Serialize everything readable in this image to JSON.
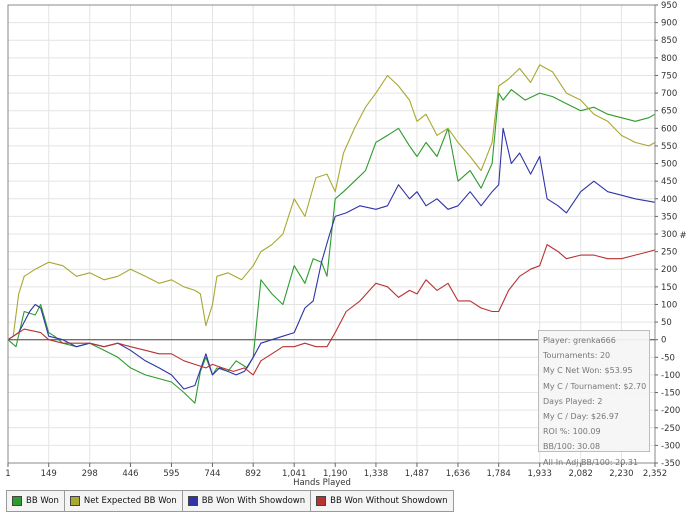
{
  "chart_data": {
    "type": "line",
    "xlabel": "Hands Played",
    "ylabel": "#",
    "xlim": [
      1,
      2352
    ],
    "ylim": [
      -350,
      950
    ],
    "x_ticks": [
      "1",
      "149",
      "298",
      "446",
      "595",
      "744",
      "892",
      "1,041",
      "1,190",
      "1,338",
      "1,487",
      "1,636",
      "1,784",
      "1,933",
      "2,082",
      "2,230",
      "2,352"
    ],
    "x_tick_values": [
      1,
      149,
      298,
      446,
      595,
      744,
      892,
      1041,
      1190,
      1338,
      1487,
      1636,
      1784,
      1933,
      2082,
      2230,
      2352
    ],
    "y_ticks": [
      -350,
      -300,
      -250,
      -200,
      -150,
      -100,
      -50,
      0,
      50,
      100,
      150,
      200,
      250,
      300,
      350,
      400,
      450,
      500,
      550,
      600,
      650,
      700,
      750,
      800,
      850,
      900,
      950
    ],
    "series": [
      {
        "name": "BB Won",
        "color": "#2e9b2e",
        "x": [
          1,
          30,
          60,
          100,
          120,
          149,
          170,
          200,
          250,
          298,
          350,
          400,
          446,
          500,
          595,
          640,
          680,
          700,
          720,
          744,
          760,
          800,
          830,
          870,
          892,
          920,
          960,
          1000,
          1041,
          1080,
          1110,
          1140,
          1160,
          1190,
          1220,
          1260,
          1300,
          1338,
          1380,
          1420,
          1460,
          1487,
          1520,
          1560,
          1600,
          1636,
          1680,
          1720,
          1760,
          1784,
          1800,
          1830,
          1880,
          1933,
          1980,
          2030,
          2082,
          2130,
          2180,
          2230,
          2280,
          2330,
          2352
        ],
        "y": [
          0,
          -20,
          80,
          70,
          100,
          20,
          10,
          -10,
          -20,
          -10,
          -30,
          -50,
          -80,
          -100,
          -120,
          -150,
          -180,
          -90,
          -50,
          -100,
          -80,
          -90,
          -60,
          -80,
          -50,
          170,
          130,
          100,
          210,
          160,
          230,
          220,
          180,
          400,
          420,
          450,
          480,
          560,
          580,
          600,
          550,
          520,
          560,
          520,
          600,
          450,
          480,
          430,
          500,
          700,
          680,
          710,
          680,
          700,
          690,
          670,
          650,
          660,
          640,
          630,
          620,
          630,
          640
        ]
      },
      {
        "name": "Net Expected BB Won",
        "color": "#a8a832",
        "x": [
          1,
          20,
          40,
          60,
          80,
          100,
          149,
          200,
          250,
          298,
          350,
          400,
          446,
          500,
          550,
          595,
          640,
          680,
          700,
          720,
          744,
          760,
          800,
          850,
          892,
          920,
          960,
          1000,
          1041,
          1080,
          1120,
          1160,
          1190,
          1220,
          1260,
          1300,
          1338,
          1380,
          1420,
          1460,
          1487,
          1520,
          1560,
          1600,
          1636,
          1680,
          1720,
          1760,
          1784,
          1820,
          1860,
          1900,
          1933,
          1980,
          2030,
          2082,
          2130,
          2180,
          2230,
          2280,
          2330,
          2352
        ],
        "y": [
          0,
          10,
          130,
          180,
          190,
          200,
          220,
          210,
          180,
          190,
          170,
          180,
          200,
          180,
          160,
          170,
          150,
          140,
          130,
          40,
          100,
          180,
          190,
          170,
          210,
          250,
          270,
          300,
          400,
          350,
          460,
          470,
          420,
          530,
          600,
          660,
          700,
          750,
          720,
          680,
          620,
          640,
          580,
          600,
          560,
          520,
          480,
          560,
          720,
          740,
          770,
          730,
          780,
          760,
          700,
          680,
          640,
          620,
          580,
          560,
          550,
          560
        ]
      },
      {
        "name": "BB Won With Showdown",
        "color": "#2f34a8",
        "x": [
          1,
          40,
          80,
          100,
          120,
          149,
          200,
          250,
          298,
          350,
          400,
          446,
          500,
          550,
          595,
          640,
          680,
          720,
          744,
          770,
          800,
          830,
          860,
          892,
          920,
          960,
          1000,
          1041,
          1080,
          1110,
          1140,
          1170,
          1190,
          1230,
          1280,
          1338,
          1380,
          1420,
          1460,
          1487,
          1520,
          1560,
          1600,
          1636,
          1680,
          1720,
          1760,
          1784,
          1800,
          1830,
          1860,
          1900,
          1933,
          1960,
          2000,
          2030,
          2082,
          2130,
          2180,
          2230,
          2280,
          2352
        ],
        "y": [
          0,
          20,
          80,
          100,
          90,
          10,
          0,
          -20,
          -10,
          -20,
          -10,
          -30,
          -60,
          -80,
          -100,
          -140,
          -130,
          -40,
          -100,
          -80,
          -90,
          -100,
          -90,
          -50,
          -10,
          0,
          10,
          20,
          90,
          110,
          220,
          300,
          350,
          360,
          380,
          370,
          380,
          440,
          400,
          420,
          380,
          400,
          370,
          380,
          420,
          380,
          420,
          440,
          600,
          500,
          530,
          470,
          520,
          400,
          380,
          360,
          420,
          450,
          420,
          410,
          400,
          390
        ]
      },
      {
        "name": "BB Won Without Showdown",
        "color": "#b83232",
        "x": [
          1,
          60,
          120,
          149,
          200,
          250,
          298,
          350,
          400,
          446,
          500,
          550,
          595,
          640,
          680,
          720,
          744,
          780,
          820,
          860,
          892,
          920,
          960,
          1000,
          1041,
          1080,
          1120,
          1160,
          1190,
          1230,
          1280,
          1338,
          1380,
          1420,
          1460,
          1487,
          1520,
          1560,
          1600,
          1636,
          1680,
          1720,
          1760,
          1784,
          1820,
          1860,
          1900,
          1933,
          1960,
          2000,
          2030,
          2082,
          2130,
          2180,
          2230,
          2280,
          2330,
          2352
        ],
        "y": [
          0,
          30,
          20,
          0,
          -10,
          -10,
          -10,
          -20,
          -10,
          -20,
          -30,
          -40,
          -40,
          -60,
          -70,
          -80,
          -70,
          -80,
          -90,
          -80,
          -100,
          -60,
          -40,
          -20,
          -20,
          -10,
          -20,
          -20,
          20,
          80,
          110,
          160,
          150,
          120,
          140,
          130,
          170,
          140,
          160,
          110,
          110,
          90,
          80,
          80,
          140,
          180,
          200,
          210,
          270,
          250,
          230,
          240,
          240,
          230,
          230,
          240,
          250,
          255
        ]
      }
    ]
  },
  "stats": {
    "player": "Player: grenka666",
    "tournaments": "Tournaments: 20",
    "net_won": "My C Net Won: $53.95",
    "per_tournament": "My C / Tournament: $2.70",
    "days_played": "Days Played: 2",
    "per_day": "My C / Day: $26.97",
    "roi": "ROI %: 100.09",
    "bb100": "BB/100: 30.08",
    "allin_bb100": "All-In Adj BB/100: 20.31"
  },
  "legend": [
    {
      "label": "BB Won",
      "color": "#2e9b2e"
    },
    {
      "label": "Net Expected BB Won",
      "color": "#a8a832"
    },
    {
      "label": "BB Won With Showdown",
      "color": "#2f34a8"
    },
    {
      "label": "BB Won Without Showdown",
      "color": "#b83232"
    }
  ]
}
